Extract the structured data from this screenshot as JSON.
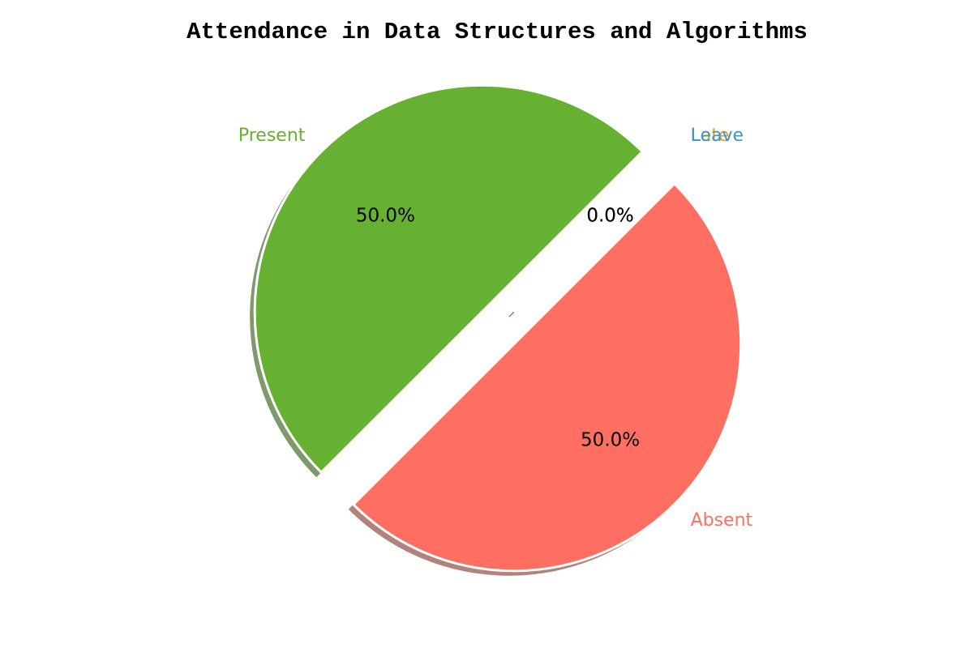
{
  "chart_data": {
    "type": "pie",
    "title": "Attendance in Data Structures and Algorithms",
    "categories": [
      "Present",
      "Absent",
      "Late",
      "Leave"
    ],
    "values": [
      50,
      50,
      0,
      0
    ],
    "percent_labels": [
      "50.0%",
      "50.0%",
      "0.0%",
      "0.0%"
    ],
    "colors": [
      "#66b032",
      "#ff6f61",
      "#f39c12",
      "#3498db"
    ],
    "label_colors": [
      "#66b032",
      "#ff6f61",
      "#f39c12",
      "#3498db"
    ],
    "start_angle_deg": 45,
    "direction": "counterclockwise",
    "exploded": true,
    "shadow": true
  }
}
